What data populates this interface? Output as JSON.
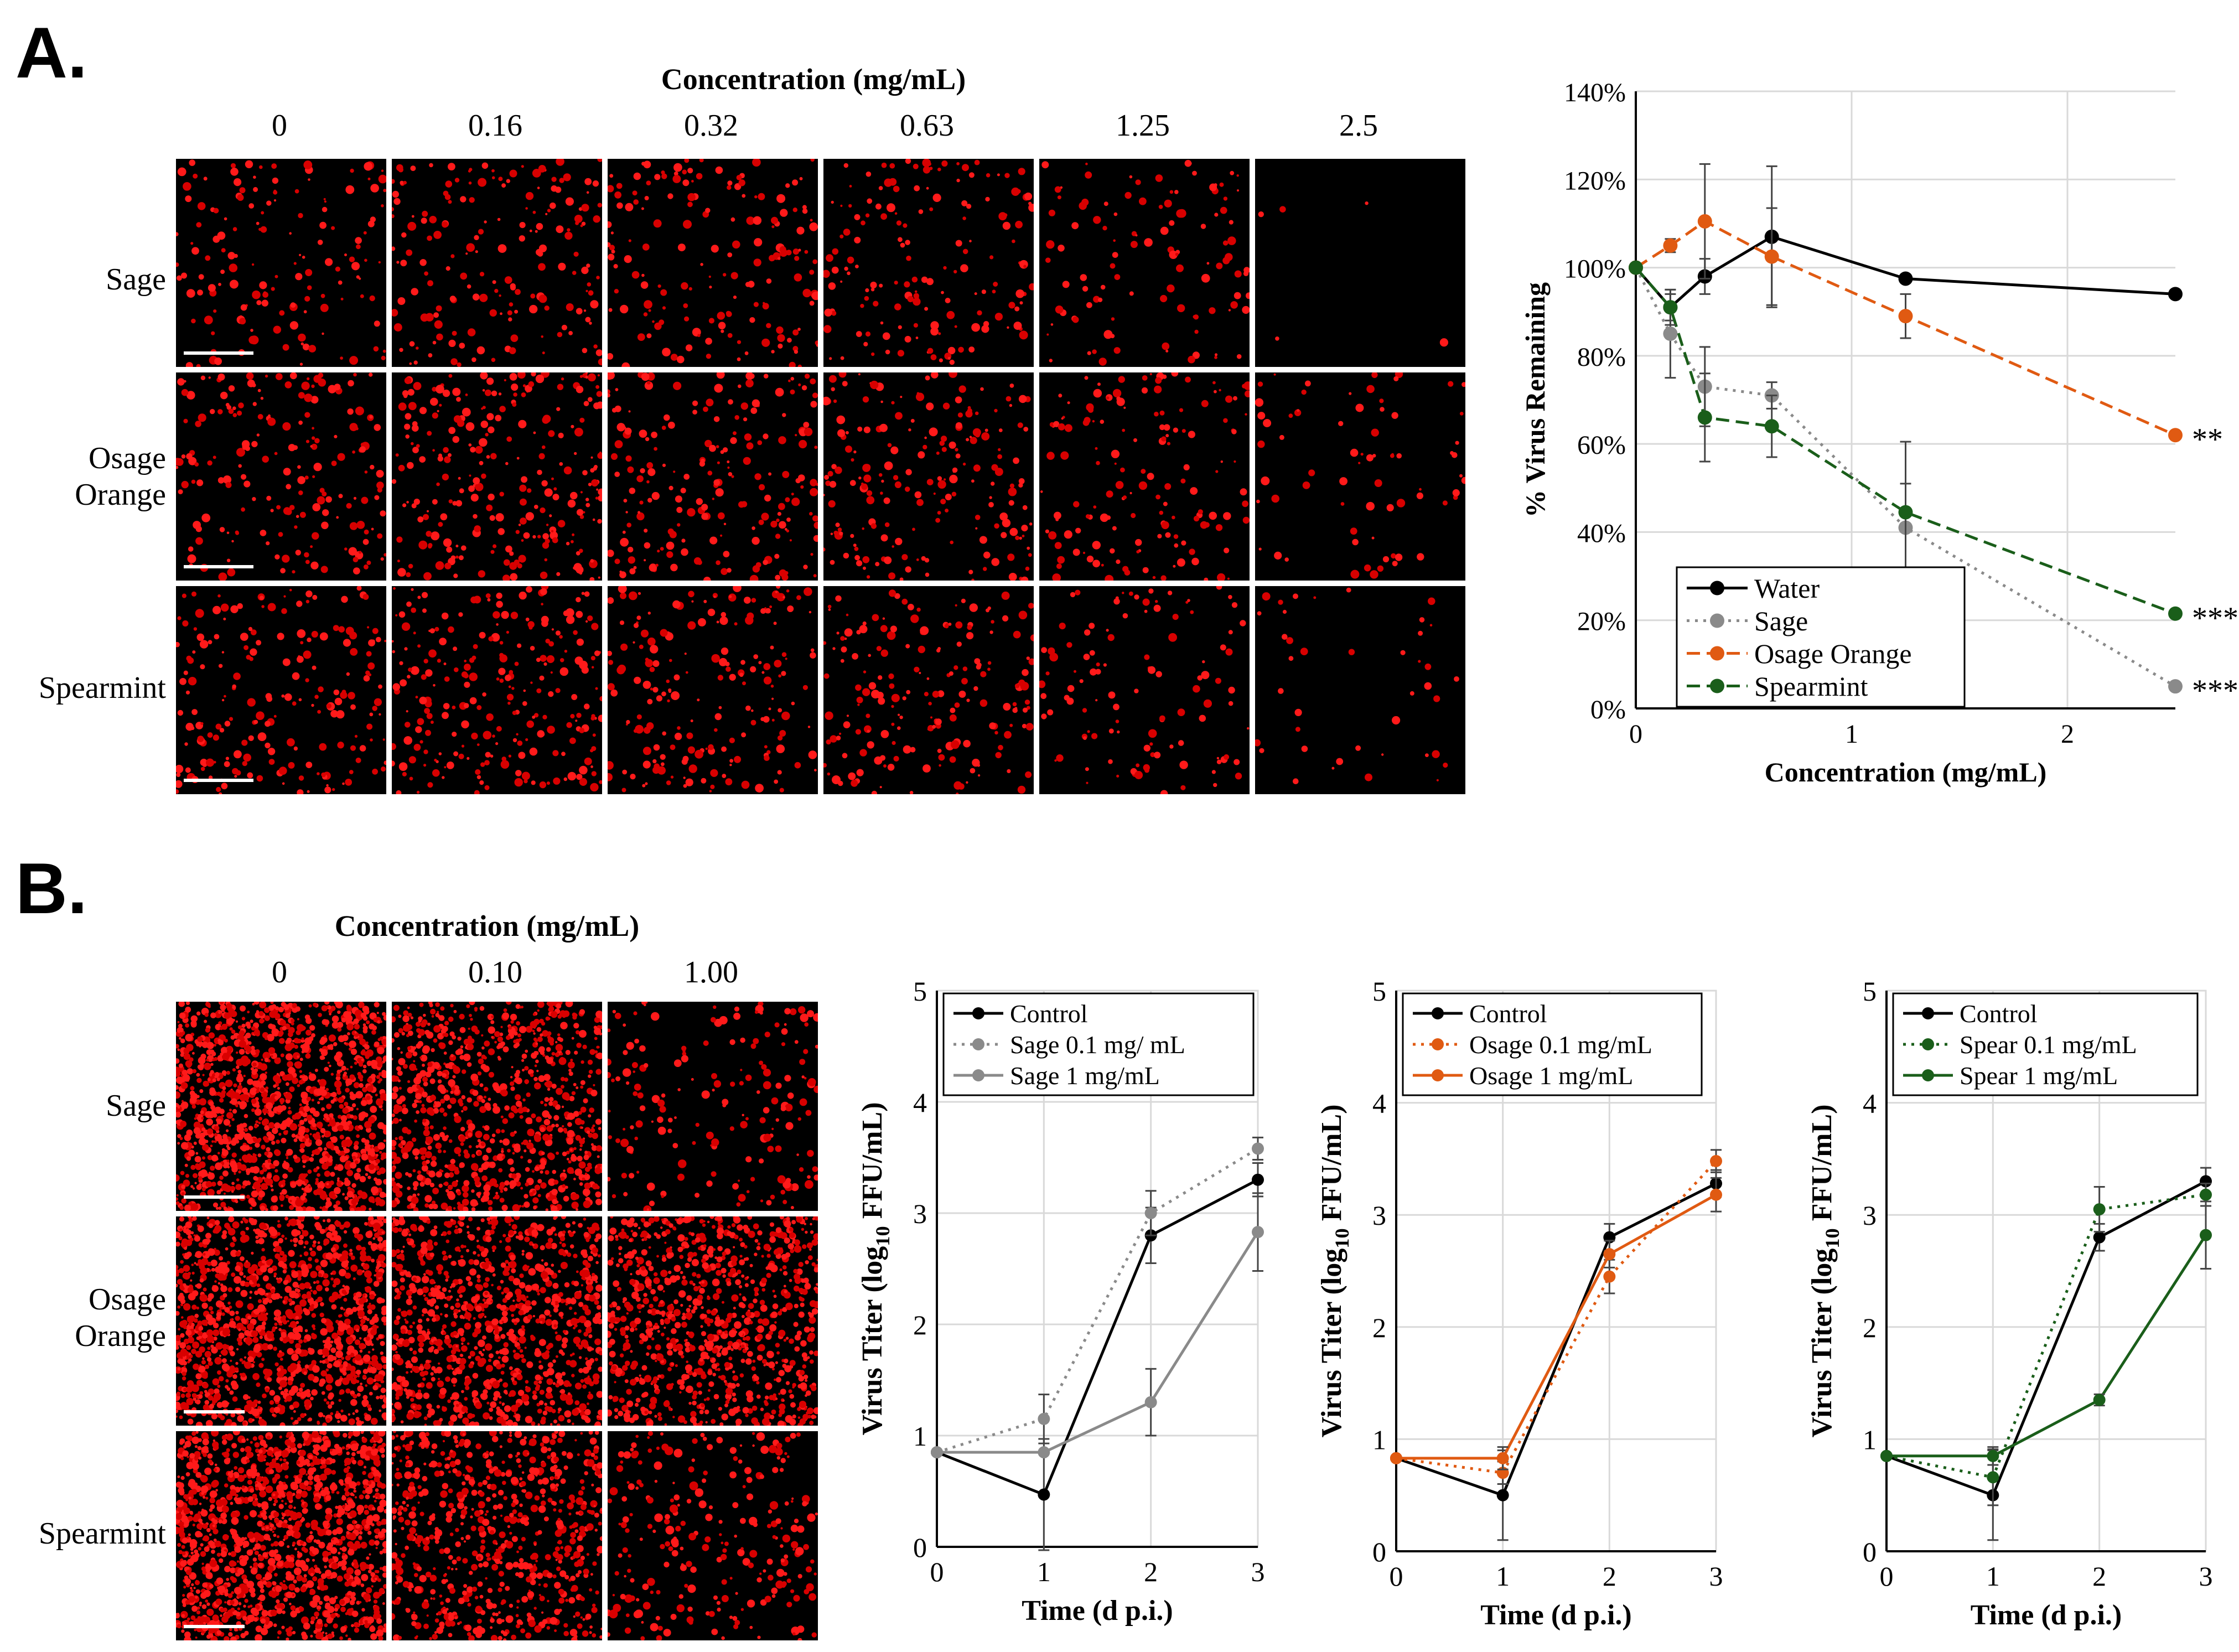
{
  "panelA": {
    "letter": "A.",
    "header": "Concentration (mg/mL)",
    "columns": [
      "0",
      "0.16",
      "0.32",
      "0.63",
      "1.25",
      "2.5"
    ],
    "rows": [
      [
        "Sage"
      ],
      [
        "Osage",
        "Orange"
      ],
      [
        "Spearmint"
      ]
    ]
  },
  "panelB": {
    "letter": "B.",
    "header": "Concentration (mg/mL)",
    "columns": [
      "0",
      "0.10",
      "1.00"
    ],
    "rows": [
      [
        "Sage"
      ],
      [
        "Osage",
        "Orange"
      ],
      [
        "Spearmint"
      ]
    ]
  },
  "chart_data": [
    {
      "type": "line",
      "panel": "A",
      "xlabel": "Concentration (mg/mL)",
      "ylabel": "% Virus Remaining",
      "xlim": [
        0,
        2.5
      ],
      "ylim": [
        0,
        140
      ],
      "xticks": [
        0,
        1,
        2
      ],
      "yticks": [
        0,
        20,
        40,
        60,
        80,
        100,
        120,
        140
      ],
      "ytick_labels": [
        "0%",
        "20%",
        "40%",
        "60%",
        "80%",
        "100%",
        "120%",
        "140%"
      ],
      "grid": true,
      "legend_position": "bottom-left",
      "x": [
        0,
        0.16,
        0.32,
        0.63,
        1.25,
        2.5
      ],
      "series": [
        {
          "name": "Water",
          "color": "#000000",
          "dash": "solid",
          "values": [
            100,
            91,
            98,
            107,
            97.5,
            94
          ],
          "errors": [
            0,
            3,
            4,
            16,
            0,
            0
          ],
          "marker": ""
        },
        {
          "name": "Sage",
          "color": "#8a8a8a",
          "dash": "dotted",
          "values": [
            100,
            85,
            73,
            71,
            41,
            5
          ],
          "errors": [
            0,
            10,
            9,
            3,
            10,
            0
          ],
          "marker": "***"
        },
        {
          "name": "Osage Orange",
          "color": "#e05a12",
          "dash": "dashed",
          "values": [
            100,
            105,
            110.5,
            102.5,
            89,
            62
          ],
          "errors": [
            0,
            1.5,
            13,
            11,
            5,
            0
          ],
          "marker": "**"
        },
        {
          "name": "Spearmint",
          "color": "#1a5e1a",
          "dash": "dashed",
          "values": [
            100,
            91,
            66,
            64,
            44.5,
            21.5
          ],
          "errors": [
            0,
            4,
            10,
            7,
            16,
            0
          ],
          "marker": "***"
        }
      ]
    },
    {
      "type": "line",
      "panel": "B1",
      "xlabel": "Time (d p.i.)",
      "ylabel": "Virus Titer (log10 FFU/mL)",
      "xlim": [
        0,
        3
      ],
      "ylim": [
        0,
        5
      ],
      "xticks": [
        0,
        1,
        2,
        3
      ],
      "yticks": [
        0,
        1,
        2,
        3,
        4,
        5
      ],
      "grid": true,
      "legend_position": "top",
      "x": [
        0,
        1,
        2,
        3
      ],
      "series": [
        {
          "name": "Control",
          "color": "#000000",
          "dash": "solid",
          "values": [
            0.85,
            0.47,
            2.8,
            3.3
          ],
          "errors": [
            0,
            0.5,
            0.25,
            0.15
          ]
        },
        {
          "name": "Sage 0.1 mg/ mL",
          "color": "#8a8a8a",
          "dash": "dotted",
          "values": [
            0.85,
            1.15,
            3.0,
            3.58
          ],
          "errors": [
            0,
            0.22,
            0.2,
            0.1
          ]
        },
        {
          "name": "Sage 1 mg/mL",
          "color": "#8a8a8a",
          "dash": "solid",
          "values": [
            0.85,
            0.85,
            1.3,
            2.83
          ],
          "errors": [
            0,
            0,
            0.3,
            0.35
          ]
        }
      ]
    },
    {
      "type": "line",
      "panel": "B2",
      "xlabel": "Time (d p.i.)",
      "ylabel": "Virus Titer (log10 FFU/mL)",
      "xlim": [
        0,
        3
      ],
      "ylim": [
        0,
        5
      ],
      "xticks": [
        0,
        1,
        2,
        3
      ],
      "yticks": [
        0,
        1,
        2,
        3,
        4,
        5
      ],
      "grid": true,
      "legend_position": "top",
      "x": [
        0,
        1,
        2,
        3
      ],
      "series": [
        {
          "name": "Control",
          "color": "#000000",
          "dash": "solid",
          "values": [
            0.83,
            0.5,
            2.8,
            3.28
          ],
          "errors": [
            0,
            0.4,
            0.12,
            0.12
          ]
        },
        {
          "name": "Osage 0.1 mg/mL",
          "color": "#e05a12",
          "dash": "dotted",
          "values": [
            0.83,
            0.7,
            2.45,
            3.48
          ],
          "errors": [
            0,
            0.1,
            0.15,
            0.1
          ]
        },
        {
          "name": "Osage 1 mg/mL",
          "color": "#e05a12",
          "dash": "solid",
          "values": [
            0.83,
            0.83,
            2.65,
            3.18
          ],
          "errors": [
            0,
            0.1,
            0.12,
            0.15
          ]
        }
      ]
    },
    {
      "type": "line",
      "panel": "B3",
      "xlabel": "Time (d p.i.)",
      "ylabel": "Virus Titer (log10 FFU/mL)",
      "xlim": [
        0,
        3
      ],
      "ylim": [
        0,
        5
      ],
      "xticks": [
        0,
        1,
        2,
        3
      ],
      "yticks": [
        0,
        1,
        2,
        3,
        4,
        5
      ],
      "grid": true,
      "legend_position": "top",
      "x": [
        0,
        1,
        2,
        3
      ],
      "series": [
        {
          "name": "Control",
          "color": "#000000",
          "dash": "solid",
          "values": [
            0.85,
            0.5,
            2.8,
            3.3
          ],
          "errors": [
            0,
            0.4,
            0.12,
            0.12
          ]
        },
        {
          "name": "Spear 0.1 mg/mL",
          "color": "#1a5e1a",
          "dash": "dotted",
          "values": [
            0.85,
            0.66,
            3.05,
            3.18
          ],
          "errors": [
            0,
            0.25,
            0.2,
            0.1
          ]
        },
        {
          "name": "Spear 1 mg/mL",
          "color": "#1a5e1a",
          "dash": "solid",
          "values": [
            0.85,
            0.85,
            1.35,
            2.82
          ],
          "errors": [
            0,
            0.08,
            0.05,
            0.3
          ]
        }
      ]
    }
  ]
}
